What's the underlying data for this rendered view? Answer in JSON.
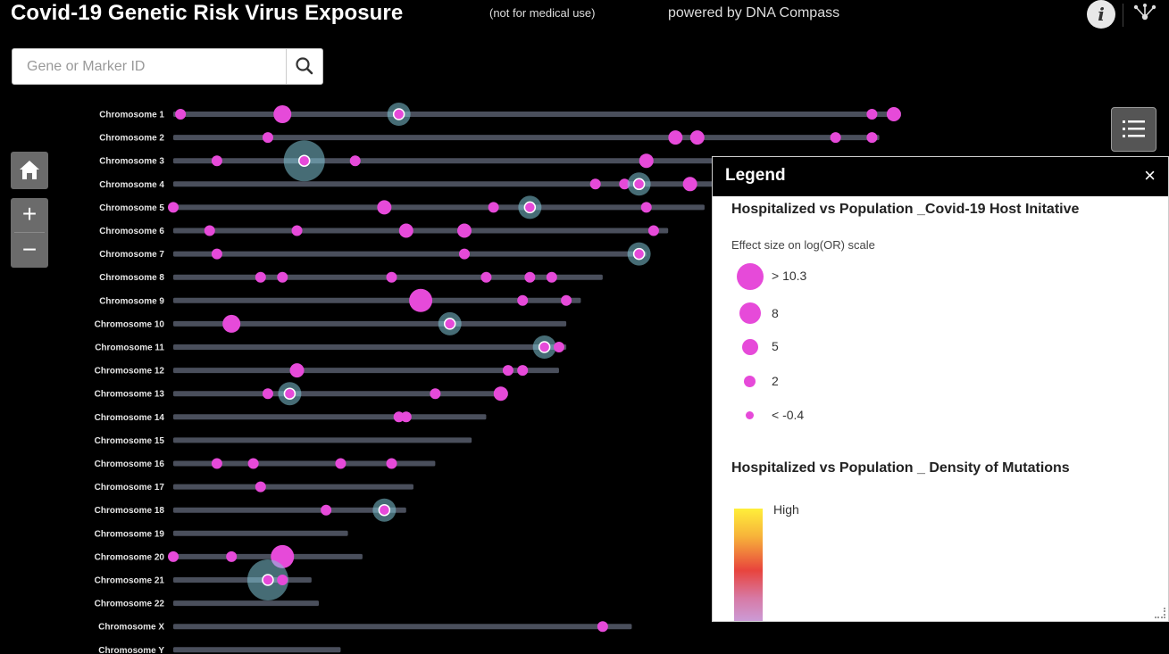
{
  "header": {
    "title": "Covid-19 Genetic Risk Virus Exposure",
    "note": "(not for medical use)",
    "powered_by": "powered by DNA Compass",
    "info_icon_glyph": "i"
  },
  "search": {
    "placeholder": "Gene or Marker ID"
  },
  "controls": {
    "zoom_in": "+",
    "zoom_out": "−"
  },
  "legend": {
    "title": "Legend",
    "close": "×",
    "layer1_title": "Hospitalized vs Population _Covid-19 Host Initative",
    "effect_label": "Effect size on log(OR) scale",
    "symbols": [
      {
        "label": "> 10.3"
      },
      {
        "label": "8"
      },
      {
        "label": "5"
      },
      {
        "label": "2"
      },
      {
        "label": "< -0.4"
      }
    ],
    "layer2_title": "Hospitalized vs Population _ Density of Mutations",
    "ramp_high": "High"
  },
  "colors": {
    "marker": "#e64ad9",
    "highlight": "#7fc4d6",
    "chromosome_bar": "#4a4f5c"
  },
  "chart_data": {
    "type": "scatter",
    "chromosomes": [
      {
        "name": "Chromosome 1",
        "length": 1.0,
        "markers": [
          {
            "pos": 0.01,
            "size": 2
          },
          {
            "pos": 0.15,
            "size": 8
          },
          {
            "pos": 0.31,
            "size": 2,
            "hl": true
          },
          {
            "pos": 0.96,
            "size": 2
          },
          {
            "pos": 0.99,
            "size": 5
          }
        ]
      },
      {
        "name": "Chromosome 2",
        "length": 0.97,
        "markers": [
          {
            "pos": 0.13,
            "size": 2
          },
          {
            "pos": 0.69,
            "size": 5
          },
          {
            "pos": 0.72,
            "size": 5
          },
          {
            "pos": 0.91,
            "size": 2
          },
          {
            "pos": 0.96,
            "size": 2
          }
        ]
      },
      {
        "name": "Chromosome 3",
        "length": 0.8,
        "markers": [
          {
            "pos": 0.06,
            "size": 2
          },
          {
            "pos": 0.18,
            "size": 2,
            "hl": true,
            "big": true
          },
          {
            "pos": 0.25,
            "size": 2
          },
          {
            "pos": 0.65,
            "size": 5
          }
        ]
      },
      {
        "name": "Chromosome 4",
        "length": 0.78,
        "markers": [
          {
            "pos": 0.58,
            "size": 2
          },
          {
            "pos": 0.62,
            "size": 2
          },
          {
            "pos": 0.64,
            "size": 2,
            "hl": true
          },
          {
            "pos": 0.71,
            "size": 5
          }
        ]
      },
      {
        "name": "Chromosome 5",
        "length": 0.73,
        "markers": [
          {
            "pos": 0.0,
            "size": 2
          },
          {
            "pos": 0.29,
            "size": 5
          },
          {
            "pos": 0.44,
            "size": 2
          },
          {
            "pos": 0.49,
            "size": 2,
            "hl": true
          },
          {
            "pos": 0.65,
            "size": 2
          }
        ]
      },
      {
        "name": "Chromosome 6",
        "length": 0.68,
        "markers": [
          {
            "pos": 0.05,
            "size": 2
          },
          {
            "pos": 0.17,
            "size": 2
          },
          {
            "pos": 0.32,
            "size": 5
          },
          {
            "pos": 0.4,
            "size": 5
          },
          {
            "pos": 0.66,
            "size": 2
          }
        ]
      },
      {
        "name": "Chromosome 7",
        "length": 0.65,
        "markers": [
          {
            "pos": 0.06,
            "size": 2
          },
          {
            "pos": 0.4,
            "size": 2
          },
          {
            "pos": 0.64,
            "size": 2,
            "hl": true
          }
        ]
      },
      {
        "name": "Chromosome 8",
        "length": 0.59,
        "markers": [
          {
            "pos": 0.12,
            "size": 2
          },
          {
            "pos": 0.15,
            "size": 2
          },
          {
            "pos": 0.3,
            "size": 2
          },
          {
            "pos": 0.43,
            "size": 2
          },
          {
            "pos": 0.49,
            "size": 2
          },
          {
            "pos": 0.52,
            "size": 2
          }
        ]
      },
      {
        "name": "Chromosome 9",
        "length": 0.56,
        "markers": [
          {
            "pos": 0.34,
            "size": 10.3
          },
          {
            "pos": 0.48,
            "size": 2
          },
          {
            "pos": 0.54,
            "size": 2
          }
        ]
      },
      {
        "name": "Chromosome 10",
        "length": 0.54,
        "markers": [
          {
            "pos": 0.08,
            "size": 8
          },
          {
            "pos": 0.38,
            "size": 2,
            "hl": true
          }
        ]
      },
      {
        "name": "Chromosome 11",
        "length": 0.54,
        "markers": [
          {
            "pos": 0.51,
            "size": 2,
            "hl": true
          },
          {
            "pos": 0.53,
            "size": 2
          }
        ]
      },
      {
        "name": "Chromosome 12",
        "length": 0.53,
        "markers": [
          {
            "pos": 0.17,
            "size": 5
          },
          {
            "pos": 0.46,
            "size": 2
          },
          {
            "pos": 0.48,
            "size": 2
          }
        ]
      },
      {
        "name": "Chromosome 13",
        "length": 0.46,
        "markers": [
          {
            "pos": 0.13,
            "size": 2
          },
          {
            "pos": 0.16,
            "size": 2,
            "hl": true
          },
          {
            "pos": 0.36,
            "size": 2
          },
          {
            "pos": 0.45,
            "size": 5
          }
        ]
      },
      {
        "name": "Chromosome 14",
        "length": 0.43,
        "markers": [
          {
            "pos": 0.31,
            "size": 2
          },
          {
            "pos": 0.32,
            "size": 2
          }
        ]
      },
      {
        "name": "Chromosome 15",
        "length": 0.41,
        "markers": []
      },
      {
        "name": "Chromosome 16",
        "length": 0.36,
        "markers": [
          {
            "pos": 0.06,
            "size": 2
          },
          {
            "pos": 0.11,
            "size": 2
          },
          {
            "pos": 0.23,
            "size": 2
          },
          {
            "pos": 0.3,
            "size": 2
          }
        ]
      },
      {
        "name": "Chromosome 17",
        "length": 0.33,
        "markers": [
          {
            "pos": 0.12,
            "size": 2
          }
        ]
      },
      {
        "name": "Chromosome 18",
        "length": 0.32,
        "markers": [
          {
            "pos": 0.21,
            "size": 2
          },
          {
            "pos": 0.29,
            "size": 2,
            "hl": true
          }
        ]
      },
      {
        "name": "Chromosome 19",
        "length": 0.24,
        "markers": []
      },
      {
        "name": "Chromosome 20",
        "length": 0.26,
        "markers": [
          {
            "pos": 0.0,
            "size": 2
          },
          {
            "pos": 0.08,
            "size": 2
          },
          {
            "pos": 0.15,
            "size": 10.3
          }
        ]
      },
      {
        "name": "Chromosome 21",
        "length": 0.19,
        "markers": [
          {
            "pos": 0.13,
            "size": 2,
            "hl": true,
            "big": true
          },
          {
            "pos": 0.15,
            "size": 2
          }
        ]
      },
      {
        "name": "Chromosome 22",
        "length": 0.2,
        "markers": []
      },
      {
        "name": "Chromosome X",
        "length": 0.63,
        "markers": [
          {
            "pos": 0.59,
            "size": 2
          }
        ]
      },
      {
        "name": "Chromosome Y",
        "length": 0.23,
        "markers": []
      }
    ]
  }
}
